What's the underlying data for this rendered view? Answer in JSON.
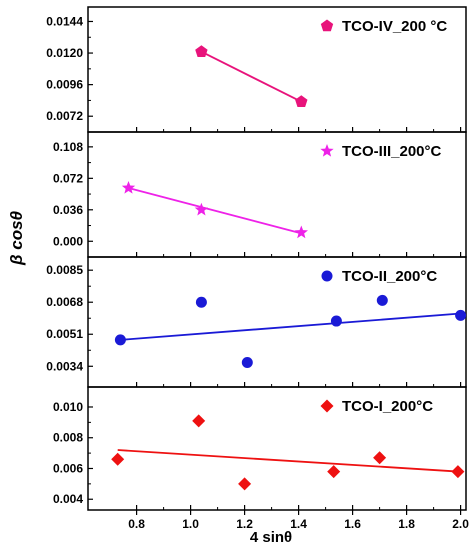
{
  "chart_data": {
    "type": "scatter",
    "shared_xlabel": "4 sinθ",
    "shared_ylabel": "β cosθ",
    "xlim": [
      0.62,
      2.02
    ],
    "xticks": [
      "0.8",
      "1.0",
      "1.2",
      "1.4",
      "1.6",
      "1.8",
      "2.0"
    ],
    "panels": [
      {
        "legend": "TCO-IV_200 °C",
        "legend_position": "top-right",
        "color": "#e8137b",
        "marker": "pentagon",
        "ylim": [
          0.006,
          0.0155
        ],
        "yticks": [
          "0.0072",
          "0.0096",
          "0.0120",
          "0.0144"
        ],
        "points": [
          [
            1.04,
            0.0121
          ],
          [
            1.41,
            0.0083
          ]
        ],
        "fit_line": [
          [
            1.04,
            0.0121
          ],
          [
            1.41,
            0.0083
          ]
        ]
      },
      {
        "legend": "TCO-III_200°C",
        "legend_position": "top-right",
        "color": "#ee22e8",
        "marker": "star",
        "ylim": [
          -0.018,
          0.125
        ],
        "yticks": [
          "0.000",
          "0.036",
          "0.072",
          "0.108"
        ],
        "points": [
          [
            0.77,
            0.061
          ],
          [
            1.04,
            0.036
          ],
          [
            1.41,
            0.01
          ]
        ],
        "fit_line": [
          [
            0.77,
            0.061
          ],
          [
            1.41,
            0.009
          ]
        ]
      },
      {
        "legend": "TCO-II_200°C",
        "legend_position": "top-right",
        "color": "#1a1ad6",
        "marker": "circle",
        "ylim": [
          0.0023,
          0.0092
        ],
        "yticks": [
          "0.0034",
          "0.0051",
          "0.0068",
          "0.0085"
        ],
        "points": [
          [
            0.74,
            0.0048
          ],
          [
            1.04,
            0.0068
          ],
          [
            1.21,
            0.0036
          ],
          [
            1.54,
            0.0058
          ],
          [
            1.71,
            0.0069
          ],
          [
            2.0,
            0.0061
          ]
        ],
        "fit_line": [
          [
            0.74,
            0.0048
          ],
          [
            2.0,
            0.0062
          ]
        ]
      },
      {
        "legend": "TCO-I_200°C",
        "legend_position": "top-right",
        "color": "#ee1111",
        "marker": "diamond",
        "ylim": [
          0.0033,
          0.0113
        ],
        "yticks": [
          "0.004",
          "0.006",
          "0.008",
          "0.010"
        ],
        "points": [
          [
            0.73,
            0.0066
          ],
          [
            1.03,
            0.0091
          ],
          [
            1.2,
            0.005
          ],
          [
            1.53,
            0.0058
          ],
          [
            1.7,
            0.0067
          ],
          [
            1.99,
            0.0058
          ]
        ],
        "fit_line": [
          [
            0.73,
            0.0072
          ],
          [
            1.99,
            0.0058
          ]
        ]
      }
    ]
  }
}
